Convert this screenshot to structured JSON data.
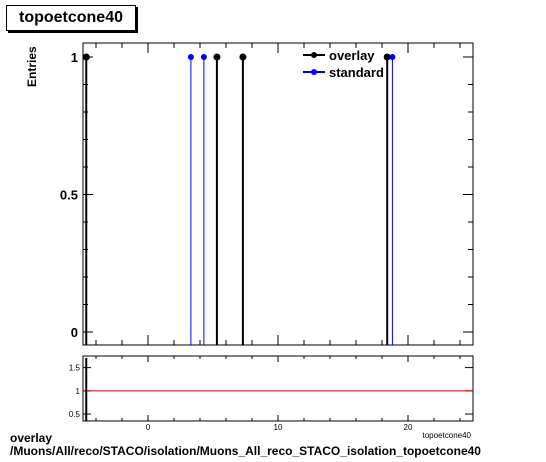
{
  "title": "topoetcone40",
  "chart_data": {
    "type": "scatter",
    "ylabel": "Entries",
    "xlabel": "topoetcone40",
    "xlim": [
      -5,
      25
    ],
    "ylim": [
      0,
      1.05
    ],
    "xticks": [
      0,
      10,
      20
    ],
    "yticks": [
      0,
      0.5,
      1
    ],
    "legend_position": "top-right",
    "colors": {
      "overlay": "#000000",
      "standard": "#0000ff",
      "ratio_line": "#cc0000"
    },
    "series": [
      {
        "name": "overlay",
        "x": [
          -4.75,
          5.3,
          7.3,
          18.4
        ],
        "y": [
          1,
          1,
          1,
          1
        ]
      },
      {
        "name": "standard",
        "x": [
          3.3,
          4.3,
          18.8
        ],
        "y": [
          1,
          1,
          1
        ]
      }
    ],
    "ratio_panel": {
      "ylim": [
        0.35,
        1.75
      ],
      "yticks": [
        0.5,
        1,
        1.5
      ],
      "reference": 1
    }
  },
  "footer": {
    "line1": "overlay",
    "line2": "/Muons/All/reco/STACO/isolation/Muons_All_reco_STACO_isolation_topoetcone40"
  }
}
